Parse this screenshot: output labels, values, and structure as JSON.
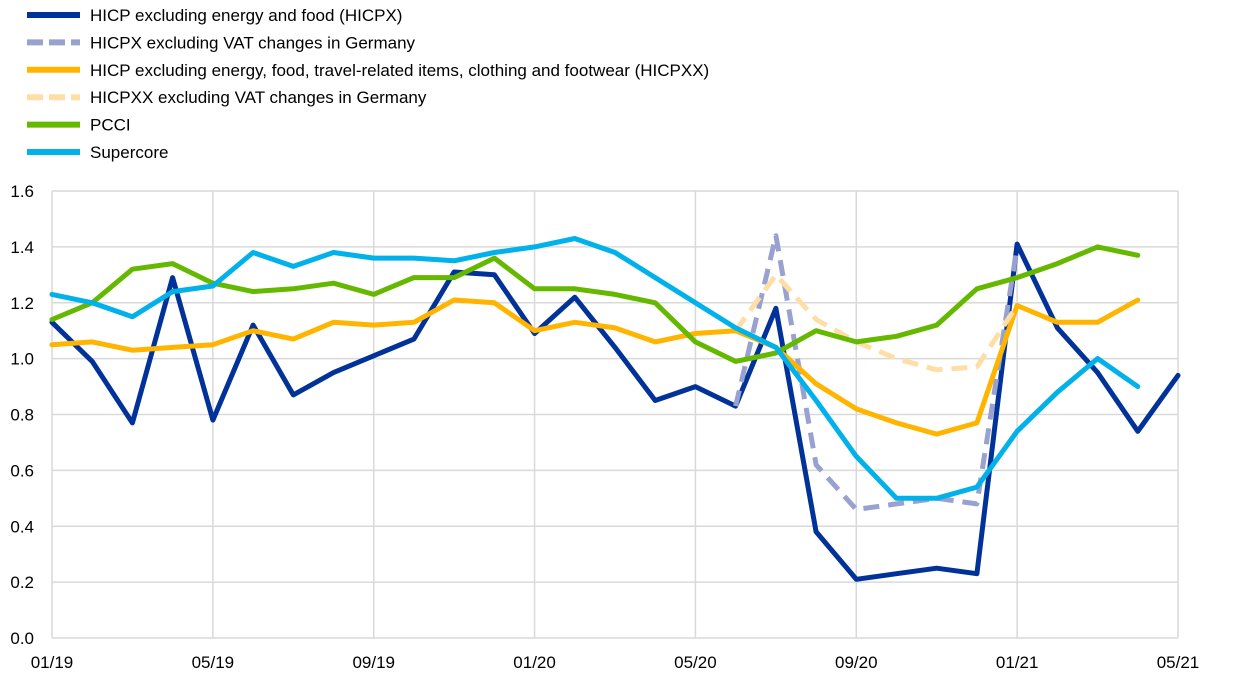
{
  "chart_data": {
    "type": "line",
    "title": "",
    "xlabel": "",
    "ylabel": "",
    "x": [
      "01/19",
      "02/19",
      "03/19",
      "04/19",
      "05/19",
      "06/19",
      "07/19",
      "08/19",
      "09/19",
      "10/19",
      "11/19",
      "12/19",
      "01/20",
      "02/20",
      "03/20",
      "04/20",
      "05/20",
      "06/20",
      "07/20",
      "08/20",
      "09/20",
      "10/20",
      "11/20",
      "12/20",
      "01/21",
      "02/21",
      "03/21",
      "04/21",
      "05/21"
    ],
    "x_tick_labels": [
      "01/19",
      "05/19",
      "09/19",
      "01/20",
      "05/20",
      "09/20",
      "01/21",
      "05/21"
    ],
    "y_tick_labels": [
      "0.0",
      "0.2",
      "0.4",
      "0.6",
      "0.8",
      "1.0",
      "1.2",
      "1.4",
      "1.6"
    ],
    "ylim": [
      0,
      1.6
    ],
    "grid": true,
    "legend_placement": "top-left",
    "series": [
      {
        "name": "HICP excluding energy and food (HICPX)",
        "color": "#003299",
        "dashed": false,
        "values": [
          1.13,
          0.99,
          0.77,
          1.29,
          0.78,
          1.12,
          0.87,
          0.95,
          1.01,
          1.07,
          1.31,
          1.3,
          1.09,
          1.22,
          1.04,
          0.85,
          0.9,
          0.83,
          1.18,
          0.38,
          0.21,
          0.23,
          0.25,
          0.23,
          1.41,
          1.11,
          0.95,
          0.74,
          0.94
        ]
      },
      {
        "name": "HICPX excluding VAT changes in Germany",
        "color": "#98A1D0",
        "dashed": true,
        "values": [
          null,
          null,
          null,
          null,
          null,
          null,
          null,
          null,
          null,
          null,
          null,
          null,
          null,
          null,
          null,
          null,
          null,
          0.83,
          1.44,
          0.62,
          0.46,
          0.48,
          0.5,
          0.48,
          1.4,
          null,
          null,
          null,
          null
        ]
      },
      {
        "name": "HICP excluding energy, food, travel-related items, clothing and footwear (HICPXX)",
        "color": "#FFB400",
        "dashed": false,
        "values": [
          1.05,
          1.06,
          1.03,
          1.04,
          1.05,
          1.1,
          1.07,
          1.13,
          1.12,
          1.13,
          1.21,
          1.2,
          1.1,
          1.13,
          1.11,
          1.06,
          1.09,
          1.1,
          1.04,
          0.91,
          0.82,
          0.77,
          0.73,
          0.77,
          1.19,
          1.13,
          1.13,
          1.21,
          null
        ]
      },
      {
        "name": "HICPXX excluding VAT changes in Germany",
        "color": "#FFDEA6",
        "dashed": true,
        "values": [
          null,
          null,
          null,
          null,
          null,
          null,
          null,
          null,
          null,
          null,
          null,
          null,
          null,
          null,
          null,
          null,
          null,
          1.1,
          1.3,
          1.14,
          1.06,
          1.0,
          0.96,
          0.97,
          1.19,
          null,
          null,
          null,
          null
        ]
      },
      {
        "name": "PCCI",
        "color": "#65B800",
        "dashed": false,
        "values": [
          1.14,
          1.2,
          1.32,
          1.34,
          1.27,
          1.24,
          1.25,
          1.27,
          1.23,
          1.29,
          1.29,
          1.36,
          1.25,
          1.25,
          1.23,
          1.2,
          1.06,
          0.99,
          1.02,
          1.1,
          1.06,
          1.08,
          1.12,
          1.25,
          1.29,
          1.34,
          1.4,
          1.37,
          null
        ]
      },
      {
        "name": "Supercore",
        "color": "#00B1EA",
        "dashed": false,
        "values": [
          1.23,
          1.2,
          1.15,
          1.24,
          1.26,
          1.38,
          1.33,
          1.38,
          1.36,
          1.36,
          1.35,
          1.38,
          1.4,
          1.43,
          1.38,
          1.29,
          1.2,
          1.11,
          1.04,
          0.85,
          0.65,
          0.5,
          0.5,
          0.54,
          0.74,
          0.88,
          1.0,
          0.9,
          null
        ]
      }
    ]
  }
}
